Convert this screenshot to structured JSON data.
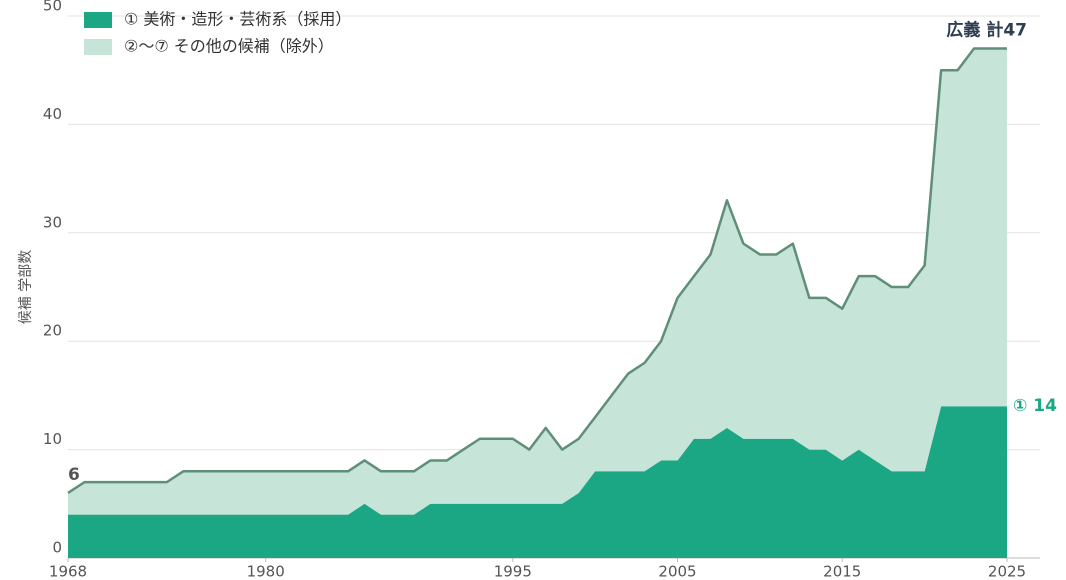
{
  "chart_data": {
    "type": "stacked_area",
    "y_label": "候補 学部数",
    "x": [
      1968,
      1969,
      1970,
      1971,
      1972,
      1973,
      1974,
      1975,
      1976,
      1977,
      1978,
      1979,
      1980,
      1981,
      1982,
      1983,
      1984,
      1985,
      1986,
      1987,
      1988,
      1989,
      1990,
      1991,
      1992,
      1993,
      1994,
      1995,
      1996,
      1997,
      1998,
      1999,
      2000,
      2001,
      2002,
      2003,
      2004,
      2005,
      2006,
      2007,
      2008,
      2009,
      2010,
      2011,
      2012,
      2013,
      2014,
      2015,
      2016,
      2017,
      2018,
      2019,
      2020,
      2021,
      2022,
      2023,
      2024,
      2025
    ],
    "series": [
      {
        "name": "① 美術・造形・芸術系（採用）",
        "color": "#1ba783",
        "values": [
          4,
          4,
          4,
          4,
          4,
          4,
          4,
          4,
          4,
          4,
          4,
          4,
          4,
          4,
          4,
          4,
          4,
          4,
          5,
          4,
          4,
          4,
          5,
          5,
          5,
          5,
          5,
          5,
          5,
          5,
          5,
          6,
          8,
          8,
          8,
          8,
          9,
          9,
          11,
          11,
          12,
          11,
          11,
          11,
          11,
          10,
          10,
          9,
          10,
          9,
          8,
          8,
          8,
          14,
          14,
          14,
          14,
          14
        ]
      },
      {
        "name": "②〜⑦ その他の候補（除外）",
        "color": "#c6e4d7",
        "line_color": "#5f8f79",
        "values": [
          2,
          3,
          3,
          3,
          3,
          3,
          3,
          4,
          4,
          4,
          4,
          4,
          4,
          4,
          4,
          4,
          4,
          4,
          4,
          4,
          4,
          4,
          4,
          4,
          5,
          6,
          6,
          6,
          5,
          7,
          5,
          5,
          5,
          7,
          9,
          10,
          11,
          15,
          15,
          17,
          21,
          18,
          17,
          17,
          18,
          14,
          14,
          14,
          16,
          17,
          17,
          17,
          19,
          31,
          31,
          33,
          33,
          33
        ]
      }
    ],
    "annotations": [
      "6",
      "広義 計47",
      "① 14"
    ],
    "xlim": [
      1968,
      2025
    ],
    "xticks": [
      1968,
      1980,
      1995,
      2005,
      2015,
      2025
    ],
    "ylim": [
      0,
      50
    ],
    "yticks": [
      0,
      10,
      20,
      30,
      40,
      50
    ],
    "grid": true,
    "legend": "top-left"
  }
}
